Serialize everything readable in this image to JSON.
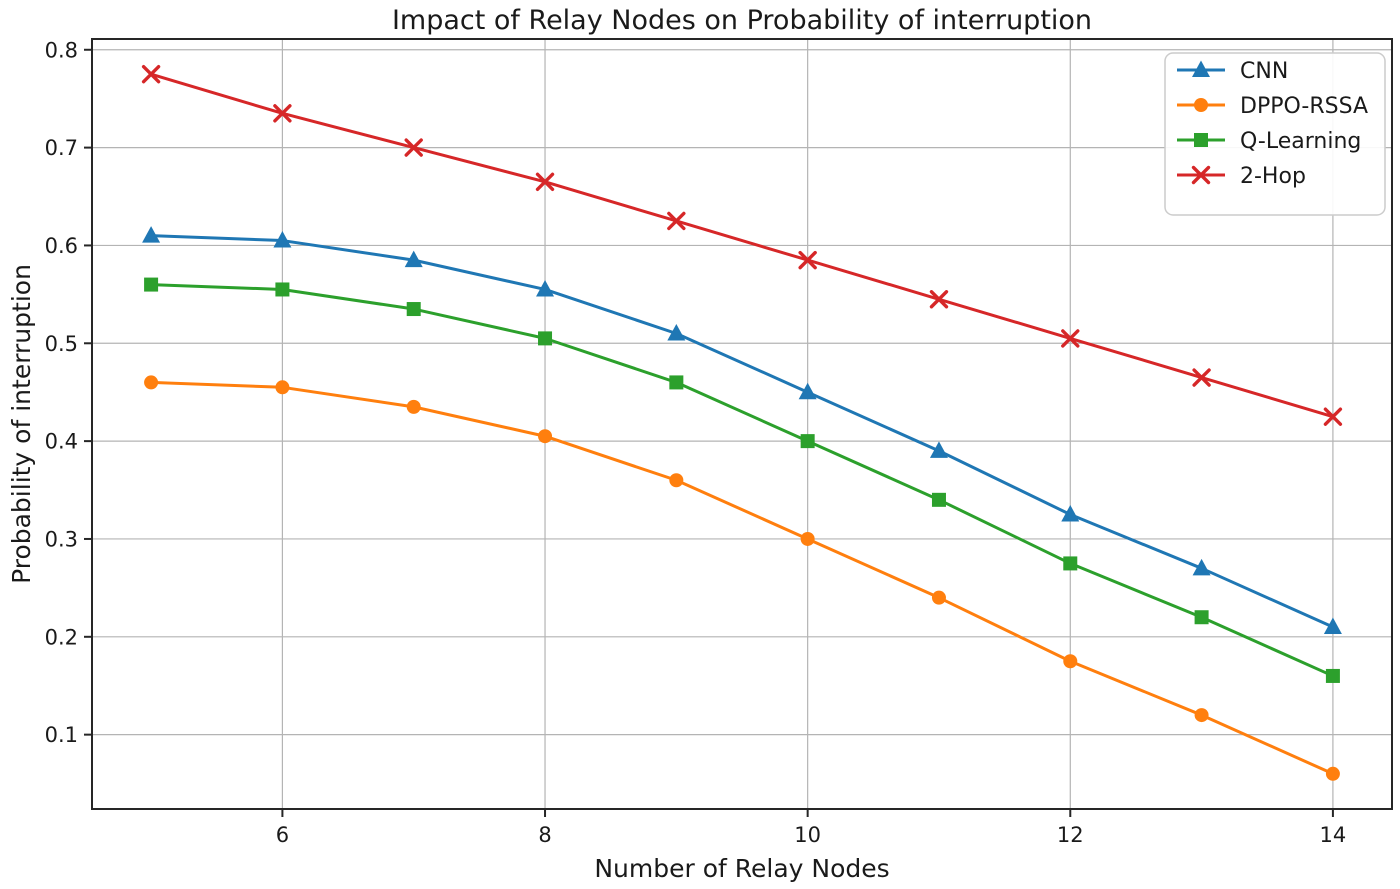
{
  "chart_data": {
    "type": "line",
    "title": "Impact of Relay Nodes on Probability of interruption",
    "xlabel": "Number of Relay Nodes",
    "ylabel": "Probability of interruption",
    "x": [
      5,
      6,
      7,
      8,
      9,
      10,
      11,
      12,
      13,
      14
    ],
    "series": [
      {
        "name": "CNN",
        "color": "#1f77b4",
        "marker": "triangle",
        "values": [
          0.61,
          0.605,
          0.585,
          0.555,
          0.51,
          0.45,
          0.39,
          0.325,
          0.27,
          0.21
        ]
      },
      {
        "name": "DPPO-RSSA",
        "color": "#ff7f0e",
        "marker": "circle",
        "values": [
          0.46,
          0.455,
          0.435,
          0.405,
          0.36,
          0.3,
          0.24,
          0.175,
          0.12,
          0.06
        ]
      },
      {
        "name": "Q-Learning",
        "color": "#2ca02c",
        "marker": "square",
        "values": [
          0.56,
          0.555,
          0.535,
          0.505,
          0.46,
          0.4,
          0.34,
          0.275,
          0.22,
          0.16
        ]
      },
      {
        "name": "2-Hop",
        "color": "#d62728",
        "marker": "x",
        "values": [
          0.775,
          0.735,
          0.7,
          0.665,
          0.625,
          0.585,
          0.545,
          0.505,
          0.465,
          0.425
        ]
      }
    ],
    "xticks": [
      6,
      8,
      10,
      12,
      14
    ],
    "yticks": [
      0.1,
      0.2,
      0.3,
      0.4,
      0.5,
      0.6,
      0.7,
      0.8
    ],
    "xlim": [
      4.55,
      14.45
    ],
    "ylim": [
      0.024,
      0.811
    ],
    "grid": true,
    "legend_position": "upper right",
    "grid_color": "#b4b4b4",
    "spine_color": "#262626"
  }
}
